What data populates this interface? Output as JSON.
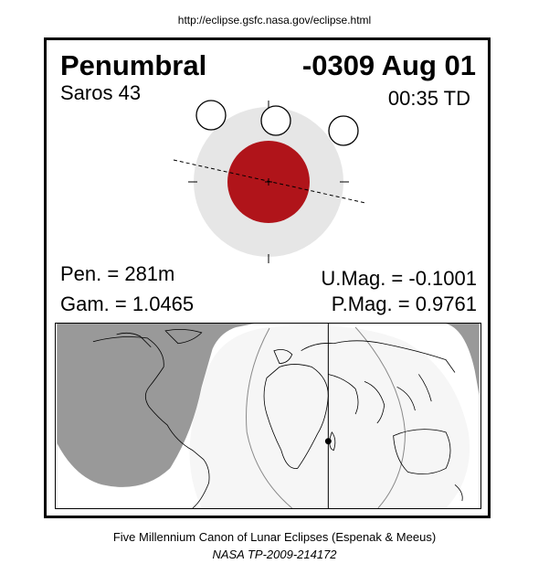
{
  "source_url": "http://eclipse.gsfc.nasa.gov/eclipse.html",
  "eclipse": {
    "type": "Penumbral",
    "date": "-0309 Aug 01",
    "saros": "Saros  43",
    "time": "00:35 TD",
    "pen": "Pen. = 281m",
    "gam": "Gam. = 1.0465",
    "umag": "U.Mag. = -0.1001",
    "pmag": "P.Mag. = 0.9761"
  },
  "colors": {
    "umbra": "#b0141a",
    "penumbra": "#e6e6e6",
    "night": "#999999",
    "day": "#ffffff",
    "twilight": "#f2f2f2"
  },
  "footer": {
    "line1": "Five Millennium Canon of Lunar Eclipses (Espenak & Meeus)",
    "line2": "NASA TP-2009-214172"
  }
}
